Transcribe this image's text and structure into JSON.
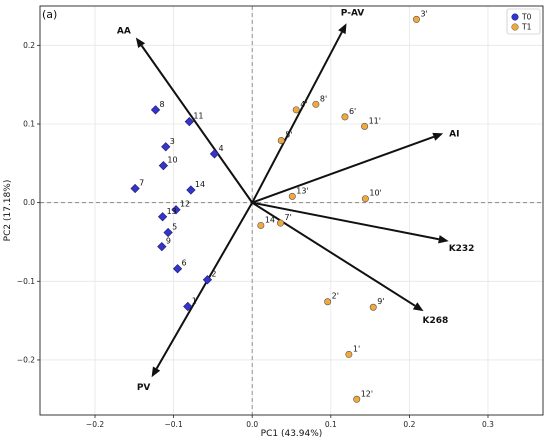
{
  "panel_label": "(a)",
  "chart_data": {
    "type": "scatter",
    "xlabel": "PC1 (43.94%)",
    "ylabel": "PC2 (17.18%)",
    "xlim": [
      -0.27,
      0.37
    ],
    "ylim": [
      -0.27,
      0.25
    ],
    "x_ticks": [
      -0.2,
      -0.1,
      0.0,
      0.1,
      0.2,
      0.3
    ],
    "y_ticks": [
      -0.2,
      -0.1,
      0.0,
      0.1,
      0.2
    ],
    "x_tick_labels": [
      "−0.2",
      "−0.1",
      "0.0",
      "0.1",
      "0.2",
      "0.3"
    ],
    "y_tick_labels": [
      "−0.2",
      "−0.1",
      "0.0",
      "0.1",
      "0.2"
    ],
    "grid": true,
    "zero_lines": true,
    "legend_position": "top-right",
    "series": [
      {
        "name": "T0",
        "color": "#3535c8",
        "marker": "diamond",
        "points": [
          {
            "label": "1",
            "x": -0.082,
            "y": -0.132
          },
          {
            "label": "2",
            "x": -0.057,
            "y": -0.098
          },
          {
            "label": "3",
            "x": -0.11,
            "y": 0.071
          },
          {
            "label": "4",
            "x": -0.048,
            "y": 0.062
          },
          {
            "label": "5",
            "x": -0.107,
            "y": -0.038
          },
          {
            "label": "6",
            "x": -0.095,
            "y": -0.084
          },
          {
            "label": "7",
            "x": -0.149,
            "y": 0.018
          },
          {
            "label": "8",
            "x": -0.123,
            "y": 0.118
          },
          {
            "label": "9",
            "x": -0.115,
            "y": -0.056
          },
          {
            "label": "10",
            "x": -0.113,
            "y": 0.047
          },
          {
            "label": "11",
            "x": -0.08,
            "y": 0.103
          },
          {
            "label": "12",
            "x": -0.097,
            "y": -0.009
          },
          {
            "label": "13",
            "x": -0.114,
            "y": -0.018
          },
          {
            "label": "14",
            "x": -0.078,
            "y": 0.016
          }
        ]
      },
      {
        "name": "T1",
        "color": "#f2a93b",
        "marker": "circle",
        "points": [
          {
            "label": "1'",
            "x": 0.123,
            "y": -0.193
          },
          {
            "label": "2'",
            "x": 0.096,
            "y": -0.126
          },
          {
            "label": "3'",
            "x": 0.209,
            "y": 0.233
          },
          {
            "label": "4'",
            "x": 0.056,
            "y": 0.118
          },
          {
            "label": "5'",
            "x": 0.037,
            "y": 0.079
          },
          {
            "label": "6'",
            "x": 0.118,
            "y": 0.109
          },
          {
            "label": "7'",
            "x": 0.036,
            "y": -0.026
          },
          {
            "label": "8'",
            "x": 0.081,
            "y": 0.125
          },
          {
            "label": "9'",
            "x": 0.154,
            "y": -0.133
          },
          {
            "label": "10'",
            "x": 0.144,
            "y": 0.005
          },
          {
            "label": "11'",
            "x": 0.143,
            "y": 0.097
          },
          {
            "label": "12'",
            "x": 0.133,
            "y": -0.25
          },
          {
            "label": "13'",
            "x": 0.051,
            "y": 0.008
          },
          {
            "label": "14'",
            "x": 0.011,
            "y": -0.029
          }
        ]
      }
    ],
    "vectors": [
      {
        "label": "AA",
        "x": -0.148,
        "y": 0.21
      },
      {
        "label": "P-AV",
        "x": 0.12,
        "y": 0.228
      },
      {
        "label": "AI",
        "x": 0.243,
        "y": 0.088
      },
      {
        "label": "K232",
        "x": 0.25,
        "y": -0.049
      },
      {
        "label": "K268",
        "x": 0.218,
        "y": -0.138
      },
      {
        "label": "PV",
        "x": -0.128,
        "y": -0.222
      }
    ]
  }
}
